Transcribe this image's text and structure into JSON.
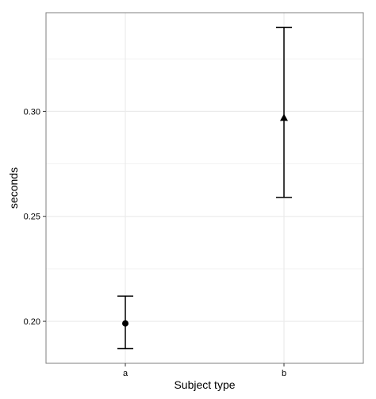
{
  "chart_data": {
    "type": "scatter",
    "title": "",
    "xlabel": "Subject type",
    "ylabel": "seconds",
    "categories": [
      "a",
      "b"
    ],
    "ylim": [
      0.18,
      0.347
    ],
    "yticks": [
      0.2,
      0.25,
      0.3
    ],
    "ytick_labels": [
      "0.20",
      "0.25",
      "0.30"
    ],
    "grid": true,
    "points": [
      {
        "category": "a",
        "y": 0.199,
        "ymin": 0.187,
        "ymax": 0.212,
        "shape": "circle"
      },
      {
        "category": "b",
        "y": 0.297,
        "ymin": 0.259,
        "ymax": 0.34,
        "shape": "triangle"
      }
    ],
    "colors": {
      "panel_border": "#7f7f7f",
      "grid": "#ebebeb",
      "mark": "#000000"
    }
  }
}
